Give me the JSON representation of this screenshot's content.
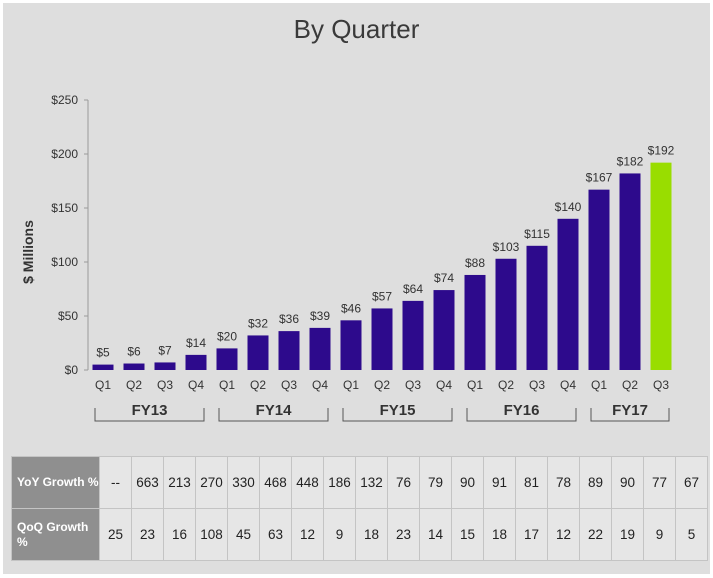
{
  "chart_data": {
    "type": "bar",
    "title": "By Quarter",
    "ylabel": "$ Millions",
    "xlabel": "",
    "ylim": [
      0,
      250
    ],
    "yticks": [
      0,
      50,
      100,
      150,
      200,
      250
    ],
    "ytick_labels": [
      "$0",
      "$50",
      "$100",
      "$150",
      "$200",
      "$250"
    ],
    "categories": [
      "Q1",
      "Q2",
      "Q3",
      "Q4",
      "Q1",
      "Q2",
      "Q3",
      "Q4",
      "Q1",
      "Q2",
      "Q3",
      "Q4",
      "Q1",
      "Q2",
      "Q3",
      "Q4",
      "Q1",
      "Q2",
      "Q3"
    ],
    "values": [
      5,
      6,
      7,
      14,
      20,
      32,
      36,
      39,
      46,
      57,
      64,
      74,
      88,
      103,
      115,
      140,
      167,
      182,
      192
    ],
    "data_labels": [
      "$5",
      "$6",
      "$7",
      "$14",
      "$20",
      "$32",
      "$36",
      "$39",
      "$46",
      "$57",
      "$64",
      "$74",
      "$88",
      "$103",
      "$115",
      "$140",
      "$167",
      "$182",
      "$192"
    ],
    "groups": [
      {
        "label": "FY13",
        "start": 0,
        "end": 3
      },
      {
        "label": "FY14",
        "start": 4,
        "end": 7
      },
      {
        "label": "FY15",
        "start": 8,
        "end": 11
      },
      {
        "label": "FY16",
        "start": 12,
        "end": 15
      },
      {
        "label": "FY17",
        "start": 16,
        "end": 18
      }
    ],
    "bar_color": "#2d0a8c",
    "highlight_color": "#99dd00",
    "highlight_index": 18,
    "grid": false
  },
  "table": {
    "rows": [
      {
        "label": "YoY Growth %",
        "values": [
          "--",
          "663",
          "213",
          "270",
          "330",
          "468",
          "448",
          "186",
          "132",
          "76",
          "79",
          "90",
          "91",
          "81",
          "78",
          "89",
          "90",
          "77",
          "67"
        ]
      },
      {
        "label": "QoQ Growth %",
        "values": [
          "25",
          "23",
          "16",
          "108",
          "45",
          "63",
          "12",
          "9",
          "18",
          "23",
          "14",
          "15",
          "18",
          "17",
          "12",
          "22",
          "19",
          "9",
          "5"
        ]
      }
    ]
  }
}
